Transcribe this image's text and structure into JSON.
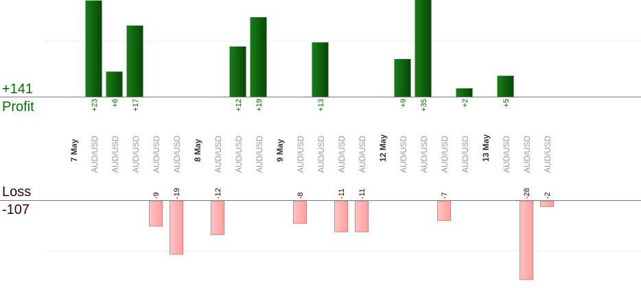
{
  "profit": {
    "total": "+141",
    "label": "Profit"
  },
  "loss": {
    "label": "Loss",
    "total": "-107"
  },
  "colors": {
    "profit_bar": "#0b6b0b",
    "profit_text": "#0b6b0b",
    "loss_bar": "#ffb3b3",
    "loss_border": "#e07f7f",
    "loss_text": "#3a0000",
    "date_text": "#333333",
    "pair_text": "#999999",
    "axis": "#777777",
    "grid": "#eeeeee"
  },
  "chart_data": {
    "type": "bar",
    "columns": [
      {
        "kind": "date",
        "label": "7 May"
      },
      {
        "kind": "trade",
        "pair": "AUD/USD",
        "value": 23,
        "label": "+23"
      },
      {
        "kind": "trade",
        "pair": "AUD/USD",
        "value": 6,
        "label": "+6"
      },
      {
        "kind": "trade",
        "pair": "AUD/USD",
        "value": 17,
        "label": "+17"
      },
      {
        "kind": "trade",
        "pair": "AUD/USD",
        "value": -9,
        "label": "-9"
      },
      {
        "kind": "trade",
        "pair": "AUD/USD",
        "value": -19,
        "label": "-19"
      },
      {
        "kind": "date",
        "label": "8 May"
      },
      {
        "kind": "trade",
        "pair": "AUD/USD",
        "value": -12,
        "label": "-12"
      },
      {
        "kind": "trade",
        "pair": "AUD/USD",
        "value": 12,
        "label": "+12"
      },
      {
        "kind": "trade",
        "pair": "AUD/USD",
        "value": 19,
        "label": "+19"
      },
      {
        "kind": "date",
        "label": "9 May"
      },
      {
        "kind": "trade",
        "pair": "AUD/USD",
        "value": -8,
        "label": "-8"
      },
      {
        "kind": "trade",
        "pair": "AUD/USD",
        "value": 13,
        "label": "+13"
      },
      {
        "kind": "trade",
        "pair": "AUD/USD",
        "value": -11,
        "label": "-11"
      },
      {
        "kind": "trade",
        "pair": "AUD/USD",
        "value": -11,
        "label": "-11"
      },
      {
        "kind": "date",
        "label": "12 May"
      },
      {
        "kind": "trade",
        "pair": "AUD/USD",
        "value": 9,
        "label": "+9"
      },
      {
        "kind": "trade",
        "pair": "AUD/USD",
        "value": 35,
        "label": "+35"
      },
      {
        "kind": "trade",
        "pair": "AUD/USD",
        "value": -7,
        "label": "-7"
      },
      {
        "kind": "trade",
        "pair": "AUD/USD",
        "value": 2,
        "label": "+2"
      },
      {
        "kind": "date",
        "label": "13 May"
      },
      {
        "kind": "trade",
        "pair": "AUD/USD",
        "value": 5,
        "label": "+5"
      },
      {
        "kind": "trade",
        "pair": "AUD/USD",
        "value": -28,
        "label": "-28"
      },
      {
        "kind": "trade",
        "pair": "AUD/USD",
        "value": -2,
        "label": "-2"
      }
    ],
    "grid": true
  }
}
